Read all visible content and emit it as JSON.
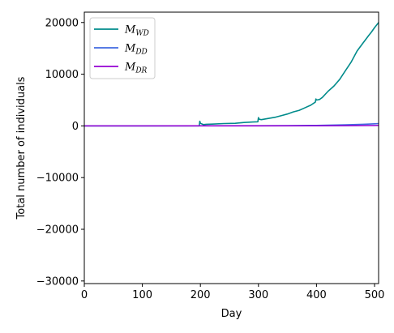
{
  "chart_data": {
    "type": "line",
    "xlabel": "Day",
    "ylabel": "Total number of individuals",
    "xlim": [
      0,
      507
    ],
    "ylim": [
      -30500,
      22000
    ],
    "xticks": [
      0,
      100,
      200,
      300,
      400,
      500
    ],
    "xtick_labels": [
      "0",
      "100",
      "200",
      "300",
      "400",
      "500"
    ],
    "yticks": [
      -30000,
      -20000,
      -10000,
      0,
      10000,
      20000
    ],
    "ytick_labels": [
      "−30000",
      "−20000",
      "−10000",
      "0",
      "10000",
      "20000"
    ],
    "legend_position": "top-left",
    "grid": false,
    "series": [
      {
        "name": "M",
        "sub": "WD",
        "color": "#008b8b",
        "x": [
          0,
          100,
          198,
          199,
          200,
          205,
          210,
          220,
          240,
          260,
          275,
          290,
          299,
          300,
          301,
          305,
          310,
          320,
          330,
          340,
          350,
          360,
          370,
          380,
          390,
          398,
          399,
          400,
          405,
          410,
          420,
          430,
          440,
          450,
          460,
          470,
          480,
          490,
          495,
          500,
          505,
          507
        ],
        "y": [
          0,
          0,
          0,
          900,
          500,
          250,
          300,
          350,
          450,
          500,
          650,
          750,
          800,
          1600,
          1300,
          1200,
          1300,
          1500,
          1700,
          2000,
          2300,
          2700,
          3000,
          3500,
          4000,
          4600,
          5200,
          5000,
          5100,
          5500,
          6700,
          7700,
          9000,
          10700,
          12400,
          14500,
          16000,
          17500,
          18200,
          19000,
          19700,
          20000
        ]
      },
      {
        "name": "M",
        "sub": "DD",
        "color": "#4169e1",
        "x": [
          0,
          100,
          200,
          300,
          350,
          400,
          450,
          480,
          500,
          507
        ],
        "y": [
          0,
          0,
          20,
          40,
          60,
          100,
          200,
          300,
          400,
          450
        ]
      },
      {
        "name": "M",
        "sub": "DR",
        "color": "#9400d3",
        "x": [
          0,
          100,
          200,
          300,
          400,
          450,
          500,
          507
        ],
        "y": [
          0,
          0,
          5,
          10,
          20,
          40,
          80,
          100
        ]
      }
    ]
  }
}
